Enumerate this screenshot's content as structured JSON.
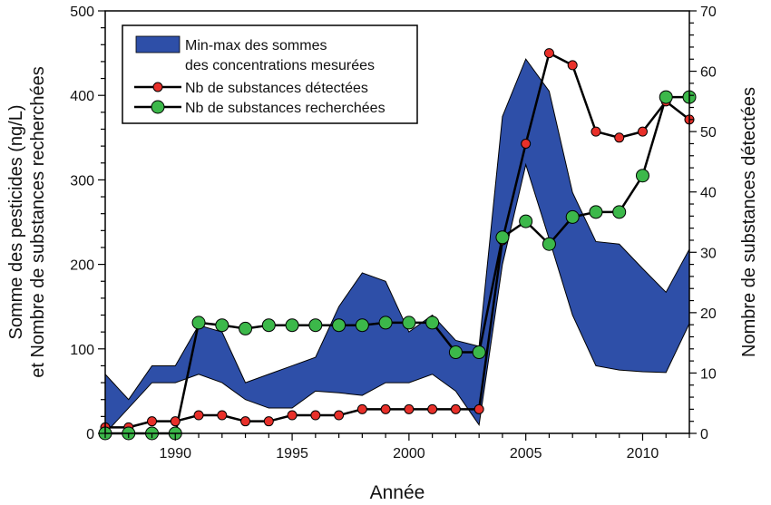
{
  "chart_data": {
    "type": "line",
    "xlabel": "Année",
    "ylabel_left": [
      "Somme des pesticides (ng/L)",
      "et Nombre de substances recherchées"
    ],
    "ylabel_right": "Nombre de substances détectées",
    "xlim": [
      1987,
      2012
    ],
    "ylim_left": [
      0,
      500
    ],
    "ylim_right": [
      0,
      70
    ],
    "x_ticks": [
      1990,
      1995,
      2000,
      2005,
      2010
    ],
    "y_ticks_left": [
      0,
      100,
      200,
      300,
      400,
      500
    ],
    "y_ticks_right": [
      0,
      10,
      20,
      30,
      40,
      50,
      60,
      70
    ],
    "legend_position": "top-left",
    "x": [
      1987,
      1988,
      1989,
      1990,
      1991,
      1992,
      1993,
      1994,
      1995,
      1996,
      1997,
      1998,
      1999,
      2000,
      2001,
      2002,
      2003,
      2004,
      2005,
      2006,
      2007,
      2008,
      2009,
      2010,
      2011,
      2012
    ],
    "series": [
      {
        "name": "Min-max des sommes des concentrations mesurées",
        "legend_lines": [
          "Min-max des sommes",
          "des concentrations mesurées"
        ],
        "kind": "band",
        "axis": "left",
        "color": "#2e4fa8",
        "max": [
          70,
          40,
          80,
          80,
          128,
          120,
          60,
          70,
          80,
          90,
          150,
          190,
          180,
          120,
          140,
          110,
          103,
          375,
          443,
          405,
          285,
          227,
          224,
          195,
          167,
          218
        ],
        "min": [
          0,
          30,
          60,
          60,
          70,
          60,
          40,
          30,
          30,
          50,
          48,
          45,
          60,
          60,
          70,
          50,
          10,
          200,
          318,
          230,
          140,
          80,
          75,
          73,
          72,
          130
        ]
      },
      {
        "name": "Nb de substances détectées",
        "kind": "line",
        "axis": "right",
        "color": "#e8302a",
        "values": [
          1,
          1,
          2,
          2,
          3,
          3,
          2,
          2,
          3,
          3,
          3,
          4,
          4,
          4,
          4,
          4,
          4,
          32,
          48,
          63,
          61,
          50,
          49,
          50,
          55,
          52
        ]
      },
      {
        "name": "Nb de substances recherchées",
        "kind": "line",
        "axis": "left",
        "color": "#3cb84a",
        "values": [
          0,
          0,
          0,
          0,
          131,
          128,
          124,
          128,
          128,
          128,
          128,
          128,
          131,
          131,
          131,
          96,
          96,
          232,
          251,
          224,
          256,
          262,
          262,
          305,
          398,
          398
        ]
      }
    ]
  }
}
